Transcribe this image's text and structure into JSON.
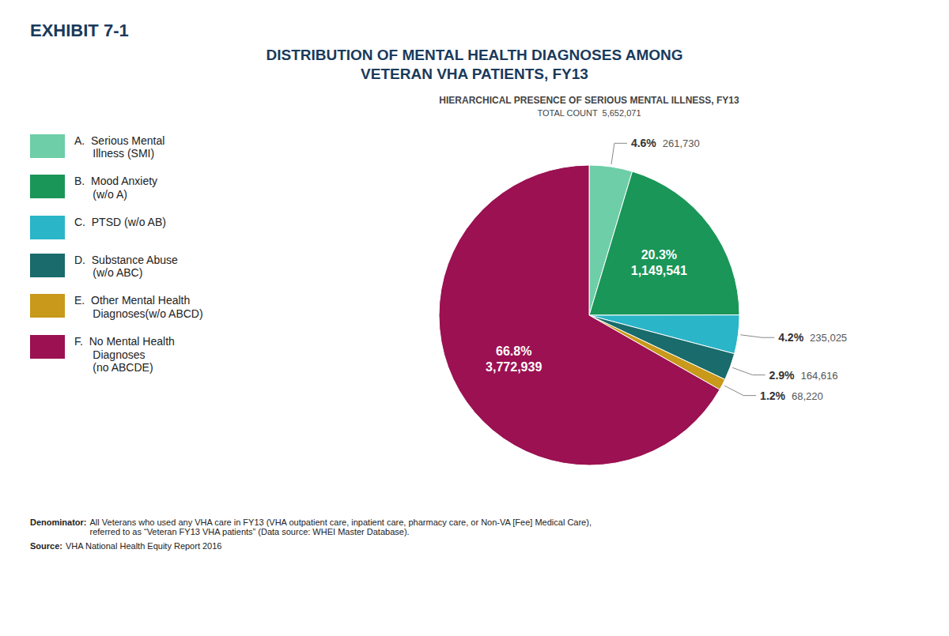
{
  "chart_data": {
    "type": "pie",
    "exhibit": "EXHIBIT 7-1",
    "title": "DISTRIBUTION OF MENTAL HEALTH DIAGNOSES AMONG\nVETERAN VHA PATIENTS, FY13",
    "subtitle": "HIERARCHICAL PRESENCE OF SERIOUS MENTAL ILLNESS, FY13",
    "total_label": "TOTAL COUNT  5,652,071",
    "categories": [
      "A.  Serious Mental\n      Illness (SMI)",
      "B.  Mood Anxiety\n      (w/o A)",
      "C.  PTSD (w/o AB)",
      "D.  Substance Abuse\n      (w/o ABC)",
      "E.  Other Mental Health\n      Diagnoses(w/o ABCD)",
      "F.  No Mental Health\n      Diagnoses\n      (no ABCDE)"
    ],
    "values": [
      261730,
      1149541,
      235025,
      164616,
      68220,
      3772939
    ],
    "value_labels": [
      "261,730",
      "1,149,541",
      "235,025",
      "164,616",
      "68,220",
      "3,772,939"
    ],
    "percentages": [
      4.6,
      20.3,
      4.2,
      2.9,
      1.2,
      66.8
    ],
    "percentage_labels": [
      "4.6%",
      "20.3%",
      "4.2%",
      "2.9%",
      "1.2%",
      "66.8%"
    ],
    "colors": [
      "#6dcea8",
      "#1a9658",
      "#2ab5c8",
      "#1a6b6b",
      "#c8991a",
      "#9b1152"
    ],
    "data_labels": true,
    "legend": "left",
    "footnotes": [
      {
        "label": "Denominator:",
        "text": "All Veterans who used any VHA care in FY13 (VHA outpatient care, inpatient care, pharmacy care, or Non-VA [Fee] Medical Care),\nreferred to as “Veteran FY13 VHA patients” (Data source: WHEI Master Database)."
      },
      {
        "label": "Source:",
        "text": "VHA National Health Equity Report 2016"
      }
    ]
  }
}
